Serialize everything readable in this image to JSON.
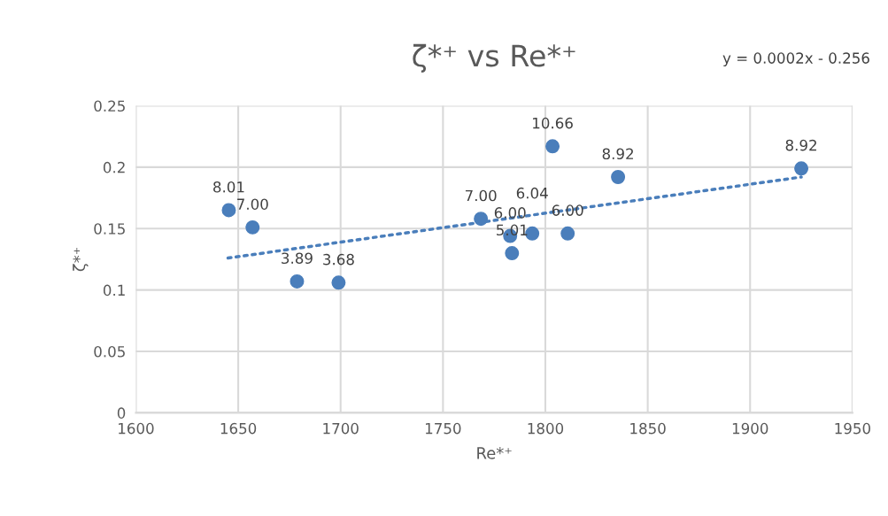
{
  "chart_data": {
    "type": "scatter",
    "title": "ζ*⁺ vs Re*⁺",
    "xlabel": "Re*⁺",
    "ylabel": "ζ*⁺",
    "annotations": [
      "y = 0.0002x - 0.256",
      {
        "text": "8.01",
        "x": 1645.4,
        "y": 0.165
      },
      {
        "text": "7.00",
        "x": 1657,
        "y": 0.151
      },
      {
        "text": "3.89",
        "x": 1678.7,
        "y": 0.107
      },
      {
        "text": "3.68",
        "x": 1699,
        "y": 0.106
      },
      {
        "text": "7.00",
        "x": 1768.5,
        "y": 0.158
      },
      {
        "text": "6.00",
        "x": 1782.8,
        "y": 0.144
      },
      {
        "text": "5.01",
        "x": 1783.7,
        "y": 0.13
      },
      {
        "text": "6.04",
        "x": 1793.6,
        "y": 0.146
      },
      {
        "text": "10.66",
        "x": 1803.5,
        "y": 0.217
      },
      {
        "text": "6.00",
        "x": 1810.9,
        "y": 0.146
      },
      {
        "text": "8.92",
        "x": 1835.5,
        "y": 0.192
      },
      {
        "text": "8.92",
        "x": 1925,
        "y": 0.199
      }
    ],
    "xlim": [
      1600,
      1950
    ],
    "xticks": [
      1600,
      1650,
      1700,
      1750,
      1800,
      1850,
      1900,
      1950
    ],
    "ylim": [
      0,
      0.25
    ],
    "yticks": [
      0,
      0.05,
      0.1,
      0.15,
      0.2,
      0.25
    ],
    "grid": true,
    "series": [
      {
        "color": "#4a7ebb",
        "marker": "circle",
        "x": [
          1645.4,
          1657,
          1678.7,
          1699,
          1768.5,
          1782.8,
          1783.7,
          1793.6,
          1803.5,
          1810.9,
          1835.5,
          1925
        ],
        "values": [
          0.165,
          0.151,
          0.107,
          0.106,
          0.158,
          0.144,
          0.13,
          0.146,
          0.217,
          0.146,
          0.192,
          0.199
        ]
      },
      {
        "type": "line",
        "color": "#4a7ebb",
        "line_style": "dotted",
        "x": [
          1645,
          1925
        ],
        "values": [
          0.126,
          0.192
        ]
      }
    ]
  }
}
